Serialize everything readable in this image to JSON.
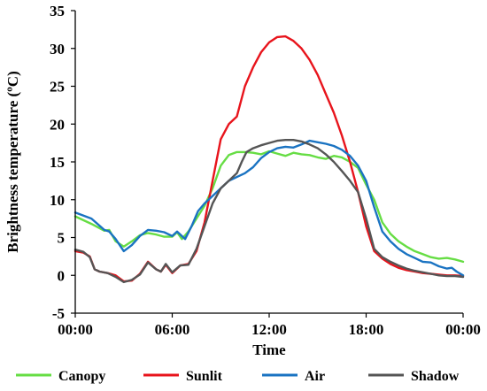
{
  "chart_data": {
    "type": "line",
    "xlabel": "Time",
    "ylabel": "Brightness temperature (ºC)",
    "xlim": [
      0,
      24
    ],
    "ylim": [
      -5,
      35
    ],
    "x_ticks": [
      {
        "value": 0,
        "label": "00:00"
      },
      {
        "value": 6,
        "label": "06:00"
      },
      {
        "value": 12,
        "label": "12:00"
      },
      {
        "value": 18,
        "label": "18:00"
      },
      {
        "value": 24,
        "label": "00:00"
      }
    ],
    "y_ticks": [
      -5,
      0,
      5,
      10,
      15,
      20,
      25,
      30,
      35
    ],
    "grid": false,
    "legend_position": "bottom",
    "series": [
      {
        "name": "Canopy",
        "color": "#66dd44",
        "points": [
          [
            0,
            7.8
          ],
          [
            1,
            6.8
          ],
          [
            1.8,
            5.9
          ],
          [
            2.1,
            6.0
          ],
          [
            2.5,
            4.5
          ],
          [
            3,
            3.8
          ],
          [
            3.5,
            4.5
          ],
          [
            4,
            5.3
          ],
          [
            4.5,
            5.6
          ],
          [
            5,
            5.4
          ],
          [
            5.5,
            5.1
          ],
          [
            6,
            5.1
          ],
          [
            6.3,
            5.7
          ],
          [
            6.6,
            4.8
          ],
          [
            7,
            5.8
          ],
          [
            7.5,
            7.5
          ],
          [
            8,
            9.2
          ],
          [
            8.5,
            11.5
          ],
          [
            9,
            14.5
          ],
          [
            9.5,
            15.9
          ],
          [
            10,
            16.3
          ],
          [
            10.5,
            16.3
          ],
          [
            11,
            16.2
          ],
          [
            11.5,
            16.0
          ],
          [
            12,
            16.4
          ],
          [
            12.5,
            16.1
          ],
          [
            13,
            15.8
          ],
          [
            13.5,
            16.2
          ],
          [
            14,
            16.0
          ],
          [
            14.5,
            15.9
          ],
          [
            15,
            15.6
          ],
          [
            15.5,
            15.4
          ],
          [
            16,
            15.8
          ],
          [
            16.5,
            15.6
          ],
          [
            17,
            15.0
          ],
          [
            17.5,
            14.2
          ],
          [
            18,
            12.0
          ],
          [
            18.5,
            10.0
          ],
          [
            19,
            7.0
          ],
          [
            19.5,
            5.5
          ],
          [
            20,
            4.5
          ],
          [
            20.5,
            3.8
          ],
          [
            21,
            3.2
          ],
          [
            21.5,
            2.8
          ],
          [
            22,
            2.4
          ],
          [
            22.5,
            2.2
          ],
          [
            23,
            2.3
          ],
          [
            23.5,
            2.1
          ],
          [
            24,
            1.8
          ]
        ]
      },
      {
        "name": "Sunlit",
        "color": "#e8141c",
        "points": [
          [
            0,
            3.2
          ],
          [
            0.5,
            3.0
          ],
          [
            0.9,
            2.5
          ],
          [
            1.2,
            0.8
          ],
          [
            1.5,
            0.5
          ],
          [
            2,
            0.3
          ],
          [
            2.5,
            0
          ],
          [
            3,
            -0.8
          ],
          [
            3.5,
            -0.7
          ],
          [
            4,
            0.2
          ],
          [
            4.5,
            1.8
          ],
          [
            5,
            0.8
          ],
          [
            5.3,
            0.5
          ],
          [
            5.6,
            1.4
          ],
          [
            6,
            0.3
          ],
          [
            6.5,
            1.3
          ],
          [
            7,
            1.5
          ],
          [
            7.5,
            3.2
          ],
          [
            8,
            7.0
          ],
          [
            8.5,
            12.5
          ],
          [
            9,
            18.0
          ],
          [
            9.5,
            20.0
          ],
          [
            10,
            21.0
          ],
          [
            10.5,
            25.0
          ],
          [
            11,
            27.5
          ],
          [
            11.5,
            29.5
          ],
          [
            12,
            30.8
          ],
          [
            12.5,
            31.5
          ],
          [
            13,
            31.6
          ],
          [
            13.5,
            31.0
          ],
          [
            14,
            30.0
          ],
          [
            14.5,
            28.5
          ],
          [
            15,
            26.5
          ],
          [
            15.5,
            24.0
          ],
          [
            16,
            21.5
          ],
          [
            16.5,
            18.5
          ],
          [
            17,
            15.0
          ],
          [
            17.5,
            11.0
          ],
          [
            18,
            6.5
          ],
          [
            18.5,
            3.2
          ],
          [
            19,
            2.2
          ],
          [
            19.5,
            1.5
          ],
          [
            20,
            1.0
          ],
          [
            20.5,
            0.7
          ],
          [
            21,
            0.5
          ],
          [
            21.5,
            0.3
          ],
          [
            22,
            0.2
          ],
          [
            22.5,
            0.1
          ],
          [
            23,
            0
          ],
          [
            23.5,
            0
          ],
          [
            24,
            -0.1
          ]
        ]
      },
      {
        "name": "Air",
        "color": "#1a73c2",
        "points": [
          [
            0,
            8.3
          ],
          [
            1,
            7.5
          ],
          [
            1.8,
            6.0
          ],
          [
            2.1,
            5.8
          ],
          [
            2.5,
            4.8
          ],
          [
            3,
            3.2
          ],
          [
            3.5,
            4.0
          ],
          [
            4,
            5.2
          ],
          [
            4.5,
            6.0
          ],
          [
            5,
            5.9
          ],
          [
            5.5,
            5.7
          ],
          [
            6,
            5.2
          ],
          [
            6.3,
            5.8
          ],
          [
            6.8,
            4.8
          ],
          [
            7.2,
            6.5
          ],
          [
            7.6,
            8.5
          ],
          [
            8,
            9.5
          ],
          [
            8.5,
            10.5
          ],
          [
            9,
            11.5
          ],
          [
            9.5,
            12.5
          ],
          [
            10,
            13.0
          ],
          [
            10.5,
            13.5
          ],
          [
            11,
            14.3
          ],
          [
            11.5,
            15.5
          ],
          [
            12,
            16.3
          ],
          [
            12.5,
            16.8
          ],
          [
            13,
            17.0
          ],
          [
            13.5,
            16.9
          ],
          [
            14,
            17.3
          ],
          [
            14.5,
            17.8
          ],
          [
            15,
            17.6
          ],
          [
            15.5,
            17.4
          ],
          [
            16,
            17.1
          ],
          [
            16.5,
            16.6
          ],
          [
            17,
            15.8
          ],
          [
            17.5,
            14.5
          ],
          [
            18,
            12.5
          ],
          [
            18.5,
            9.0
          ],
          [
            19,
            5.8
          ],
          [
            19.5,
            4.5
          ],
          [
            20,
            3.5
          ],
          [
            20.5,
            2.8
          ],
          [
            21,
            2.3
          ],
          [
            21.5,
            1.8
          ],
          [
            22,
            1.7
          ],
          [
            22.5,
            1.2
          ],
          [
            23,
            0.9
          ],
          [
            23.3,
            1.0
          ],
          [
            23.6,
            0.5
          ],
          [
            24,
            0
          ]
        ]
      },
      {
        "name": "Shadow",
        "color": "#555555",
        "points": [
          [
            0,
            3.4
          ],
          [
            0.5,
            3.1
          ],
          [
            0.9,
            2.4
          ],
          [
            1.2,
            0.8
          ],
          [
            1.5,
            0.5
          ],
          [
            2,
            0.3
          ],
          [
            2.5,
            -0.2
          ],
          [
            3,
            -0.9
          ],
          [
            3.5,
            -0.6
          ],
          [
            4,
            0.1
          ],
          [
            4.5,
            1.7
          ],
          [
            5,
            0.8
          ],
          [
            5.3,
            0.5
          ],
          [
            5.6,
            1.5
          ],
          [
            6,
            0.4
          ],
          [
            6.5,
            1.3
          ],
          [
            7,
            1.4
          ],
          [
            7.5,
            3.5
          ],
          [
            8,
            6.5
          ],
          [
            8.5,
            9.5
          ],
          [
            9,
            11.5
          ],
          [
            9.5,
            12.5
          ],
          [
            10,
            13.5
          ],
          [
            10.3,
            15.0
          ],
          [
            10.6,
            16.3
          ],
          [
            11,
            16.8
          ],
          [
            11.5,
            17.2
          ],
          [
            12,
            17.5
          ],
          [
            12.5,
            17.8
          ],
          [
            13,
            17.9
          ],
          [
            13.5,
            17.9
          ],
          [
            14,
            17.7
          ],
          [
            14.5,
            17.3
          ],
          [
            15,
            16.8
          ],
          [
            15.5,
            16.0
          ],
          [
            16,
            15.0
          ],
          [
            16.5,
            13.8
          ],
          [
            17,
            12.5
          ],
          [
            17.5,
            11.0
          ],
          [
            18,
            7.5
          ],
          [
            18.5,
            3.5
          ],
          [
            19,
            2.4
          ],
          [
            19.5,
            1.8
          ],
          [
            20,
            1.3
          ],
          [
            20.5,
            0.9
          ],
          [
            21,
            0.6
          ],
          [
            21.5,
            0.4
          ],
          [
            22,
            0.2
          ],
          [
            22.5,
            0
          ],
          [
            23,
            -0.1
          ],
          [
            23.5,
            -0.1
          ],
          [
            24,
            -0.2
          ]
        ]
      }
    ]
  }
}
